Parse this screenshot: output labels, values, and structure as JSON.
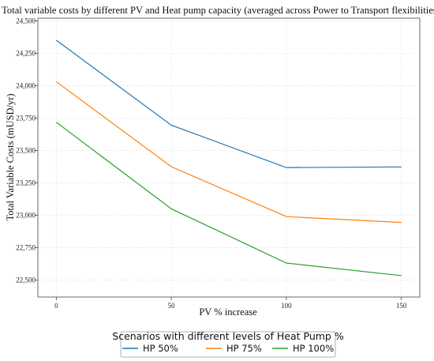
{
  "chart_data": {
    "type": "line",
    "title": "Total variable costs by different PV and Heat pump capacity (averaged across Power to Transport flexibilities)",
    "xlabel": "PV % increase",
    "ylabel": "Total Variable Costs (mUSD/yr)",
    "x": [
      0,
      50,
      100,
      150
    ],
    "x_ticks": [
      "0",
      "50",
      "100",
      "150"
    ],
    "xlim": [
      -8,
      158
    ],
    "ylim": [
      22370,
      24520
    ],
    "y_ticks": [
      22500,
      22750,
      23000,
      23250,
      23500,
      23750,
      24000,
      24250,
      24500
    ],
    "y_tick_labels": [
      "22,500",
      "22,750",
      "23,000",
      "23,250",
      "23,500",
      "23,750",
      "24,000",
      "24,250",
      "24,500"
    ],
    "grid": true,
    "legend": {
      "title": "Scenarios with different levels of Heat Pump %",
      "placement": "bottom"
    },
    "series": [
      {
        "name": "HP 50%",
        "color": "#1f77b4",
        "values": [
          24350,
          23695,
          23368,
          23373
        ]
      },
      {
        "name": "HP 75%",
        "color": "#ff7f0e",
        "values": [
          24030,
          23375,
          22990,
          22945
        ]
      },
      {
        "name": "HP 100%",
        "color": "#2ca02c",
        "values": [
          23718,
          23050,
          22632,
          22535
        ]
      }
    ]
  }
}
